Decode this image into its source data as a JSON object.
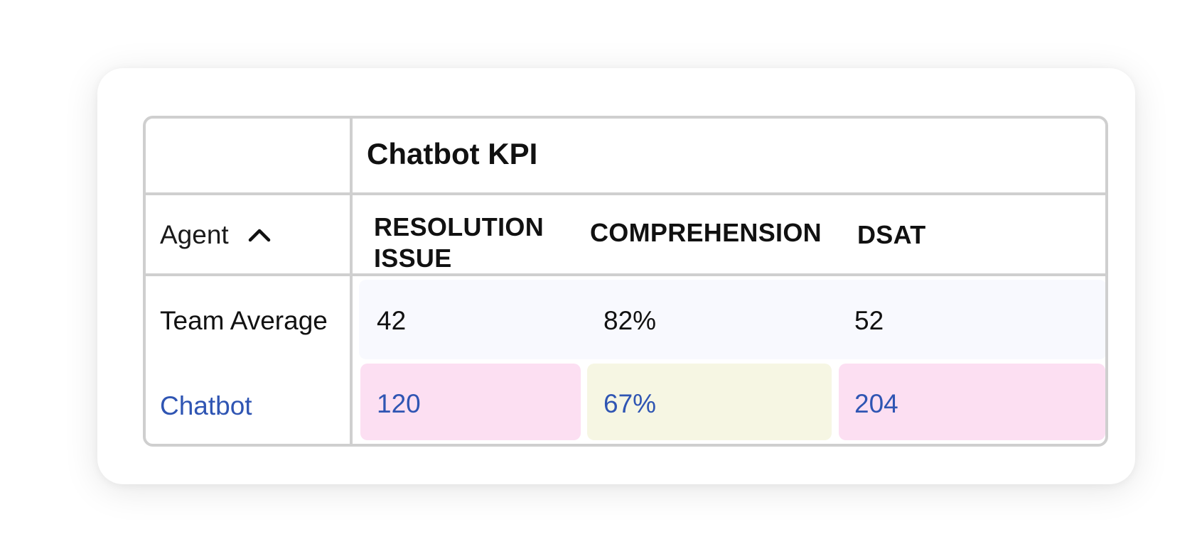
{
  "table": {
    "group_header": "Chatbot KPI",
    "agent_column": {
      "label": "Agent",
      "sort_icon": "chevron-up-icon"
    },
    "columns": [
      "RESOLUTION ISSUE",
      "COMPREHENSION",
      "DSAT"
    ],
    "rows": [
      {
        "label": "Team Average",
        "values": [
          "42",
          "82%",
          "52"
        ]
      },
      {
        "label": "Chatbot",
        "values": [
          "120",
          "67%",
          "204"
        ]
      }
    ]
  },
  "colors": {
    "border": "#cfcfcf",
    "link_text": "#2f55b3",
    "team_row_bg": "#f8f9fe",
    "highlight_pink": "#fcdff2",
    "highlight_yellow": "#f6f6e3"
  }
}
